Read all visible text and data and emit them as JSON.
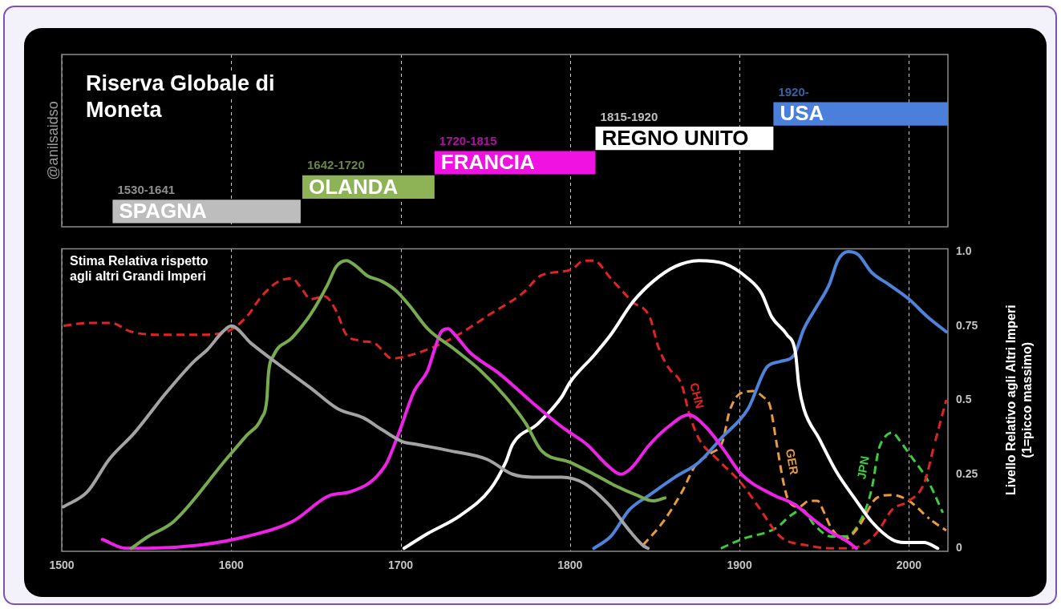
{
  "chart_data": [
    {
      "type": "bar",
      "orientation": "horizontal",
      "title": "Riserva Globale di Moneta",
      "annotations": [
        "@anilsaidso",
        {
          "text": "1920-",
          "x": 1920,
          "y": "USA"
        }
      ],
      "categories": [
        "USA",
        "REGNO UNITO",
        "FRANCIA",
        "OLANDA",
        "SPAGNA"
      ],
      "base": [
        1920,
        1815,
        1720,
        1642,
        1530
      ],
      "values": [
        103,
        105,
        95,
        78,
        111
      ],
      "colors": [
        "#4a80dc",
        "#ffffff",
        "#f012e0",
        "#8db356",
        "#bdbdbd"
      ],
      "value_labels": [
        null,
        "1815-1920",
        "1720-1815",
        "1642-1720",
        "1530-1641"
      ],
      "xlim": [
        1500,
        2023
      ],
      "xticks": [
        1500,
        1600,
        1700,
        1800,
        1900,
        2000
      ],
      "grid": "x",
      "tick_labels": false
    },
    {
      "type": "line",
      "ylabel": "Livello Relativo agli Altri Imperi\n(1=picco massimo)",
      "annotations": [
        "Stima Relativa rispetto agli altri Grandi Imperi"
      ],
      "xlim": [
        1500,
        2023
      ],
      "xticks": [
        1500,
        1600,
        1700,
        1800,
        1900,
        2000
      ],
      "ylim": [
        -0.01,
        1.01
      ],
      "yticks": [
        0,
        0.25,
        0.5,
        0.75,
        {
          "value": 1,
          "label": "1.0"
        }
      ],
      "grid": "x",
      "marker": "none",
      "series": [
        {
          "color": "#a3a3a3",
          "x": [
            1501,
            1515,
            1528,
            1543,
            1561,
            1578,
            1586,
            1595,
            1600,
            1612,
            1628,
            1647,
            1663,
            1678,
            1689,
            1701,
            1710,
            1728,
            1751,
            1766,
            1778,
            1795,
            1808,
            1824,
            1835,
            1843,
            1846
          ],
          "values": [
            0.14,
            0.19,
            0.3,
            0.39,
            0.52,
            0.63,
            0.67,
            0.73,
            0.75,
            0.69,
            0.62,
            0.54,
            0.47,
            0.44,
            0.4,
            0.36,
            0.35,
            0.33,
            0.3,
            0.25,
            0.24,
            0.24,
            0.22,
            0.14,
            0.06,
            0.01,
            0
          ]
        },
        {
          "color": "#78aa50",
          "x": [
            1541,
            1551,
            1566,
            1597,
            1609,
            1618,
            1621,
            1622,
            1625,
            1636,
            1647,
            1657,
            1662,
            1668,
            1674,
            1680,
            1689,
            1697,
            1705,
            1716,
            1732,
            1747,
            1762,
            1774,
            1783,
            1800,
            1814,
            1827,
            1839,
            1849,
            1856
          ],
          "values": [
            0,
            0.04,
            0.09,
            0.3,
            0.38,
            0.44,
            0.5,
            0.59,
            0.65,
            0.71,
            0.79,
            0.89,
            0.95,
            0.97,
            0.95,
            0.92,
            0.9,
            0.87,
            0.82,
            0.74,
            0.67,
            0.6,
            0.51,
            0.42,
            0.33,
            0.29,
            0.25,
            0.21,
            0.18,
            0.16,
            0.17
          ]
        },
        {
          "color": "#ee22e6",
          "x": [
            1524,
            1538,
            1551,
            1580,
            1609,
            1636,
            1659,
            1670,
            1691,
            1699,
            1708,
            1716,
            1720,
            1724,
            1728,
            1732,
            1741,
            1758,
            1778,
            1795,
            1800,
            1810,
            1822,
            1830,
            1836,
            1847,
            1858,
            1870,
            1880,
            1891,
            1901,
            1920,
            1932,
            1943,
            1955,
            1962,
            1969
          ],
          "values": [
            0.03,
            0,
            0,
            0.01,
            0.04,
            0.09,
            0.18,
            0.19,
            0.28,
            0.39,
            0.53,
            0.6,
            0.67,
            0.73,
            0.74,
            0.72,
            0.66,
            0.59,
            0.49,
            0.41,
            0.39,
            0.35,
            0.28,
            0.25,
            0.27,
            0.35,
            0.41,
            0.45,
            0.41,
            0.33,
            0.25,
            0.18,
            0.15,
            0.1,
            0.05,
            0.03,
            0
          ]
        },
        {
          "color": "#ffffff",
          "x": [
            1702,
            1716,
            1735,
            1753,
            1762,
            1766,
            1781,
            1795,
            1800,
            1814,
            1824,
            1837,
            1849,
            1862,
            1876,
            1891,
            1905,
            1913,
            1919,
            1928,
            1933,
            1935,
            1938,
            1947,
            1957,
            1969,
            1978,
            1990,
            1997,
            2009,
            2017
          ],
          "values": [
            0,
            0.05,
            0.11,
            0.2,
            0.29,
            0.35,
            0.42,
            0.51,
            0.56,
            0.65,
            0.72,
            0.83,
            0.9,
            0.95,
            0.97,
            0.96,
            0.91,
            0.86,
            0.78,
            0.72,
            0.66,
            0.55,
            0.47,
            0.37,
            0.26,
            0.16,
            0.09,
            0.03,
            0.02,
            0.02,
            0
          ]
        },
        {
          "color": "#4f83da",
          "x": [
            1814,
            1824,
            1835,
            1847,
            1862,
            1876,
            1889,
            1905,
            1916,
            1924,
            1932,
            1938,
            1945,
            1953,
            1958,
            1964,
            1970,
            1978,
            1988,
            2000,
            2011,
            2022
          ],
          "values": [
            0,
            0.04,
            0.13,
            0.18,
            0.24,
            0.29,
            0.37,
            0.47,
            0.61,
            0.63,
            0.65,
            0.74,
            0.81,
            0.89,
            0.97,
            1,
            0.99,
            0.93,
            0.89,
            0.84,
            0.78,
            0.73
          ]
        },
        {
          "name": "CHN",
          "color": "#e02424",
          "line_style": "dashed",
          "x": [
            1501,
            1516,
            1529,
            1541,
            1561,
            1580,
            1597,
            1609,
            1618,
            1628,
            1636,
            1641,
            1647,
            1655,
            1662,
            1668,
            1676,
            1685,
            1695,
            1705,
            1720,
            1734,
            1753,
            1772,
            1783,
            1801,
            1808,
            1814,
            1824,
            1837,
            1847,
            1852,
            1858,
            1866,
            1870,
            1876,
            1887,
            1901,
            1910,
            1924,
            1940,
            1955,
            1965,
            1975,
            1982,
            1990,
            2000,
            2009,
            2015,
            2022
          ],
          "values": [
            0.75,
            0.76,
            0.76,
            0.73,
            0.72,
            0.72,
            0.73,
            0.78,
            0.85,
            0.9,
            0.91,
            0.88,
            0.84,
            0.85,
            0.8,
            0.72,
            0.7,
            0.69,
            0.64,
            0.65,
            0.68,
            0.72,
            0.79,
            0.86,
            0.92,
            0.94,
            0.97,
            0.97,
            0.91,
            0.83,
            0.78,
            0.68,
            0.61,
            0.55,
            0.46,
            0.37,
            0.3,
            0.22,
            0.15,
            0.04,
            0.01,
            0,
            0,
            0.02,
            0.06,
            0.13,
            0.16,
            0.22,
            0.35,
            0.5
          ]
        },
        {
          "name": "GER",
          "color": "#e89a3c",
          "line_style": "dashed",
          "x": [
            1843,
            1855,
            1866,
            1874,
            1883,
            1890,
            1894,
            1900,
            1908,
            1914,
            1918,
            1922,
            1926,
            1929,
            1935,
            1941,
            1946,
            1950,
            1954,
            1962,
            1970,
            1981,
            1990,
            2000,
            2012,
            2022
          ],
          "values": [
            0.01,
            0.09,
            0.19,
            0.28,
            0.32,
            0.36,
            0.46,
            0.52,
            0.53,
            0.51,
            0.48,
            0.35,
            0.22,
            0.16,
            0.14,
            0.16,
            0.16,
            0.12,
            0.07,
            0.03,
            0.07,
            0.17,
            0.18,
            0.16,
            0.1,
            0.06
          ]
        },
        {
          "name": "JPN",
          "color": "#3ccc3c",
          "line_style": "dashed",
          "x": [
            1889,
            1901,
            1922,
            1930,
            1937,
            1944,
            1954,
            1963,
            1972,
            1978,
            1982,
            1984,
            1990,
            1995,
            2000,
            2011,
            2020
          ],
          "values": [
            0,
            0.03,
            0.07,
            0.11,
            0.13,
            0.08,
            0.04,
            0.04,
            0.1,
            0.2,
            0.33,
            0.36,
            0.39,
            0.36,
            0.32,
            0.23,
            0.12
          ]
        }
      ]
    }
  ]
}
